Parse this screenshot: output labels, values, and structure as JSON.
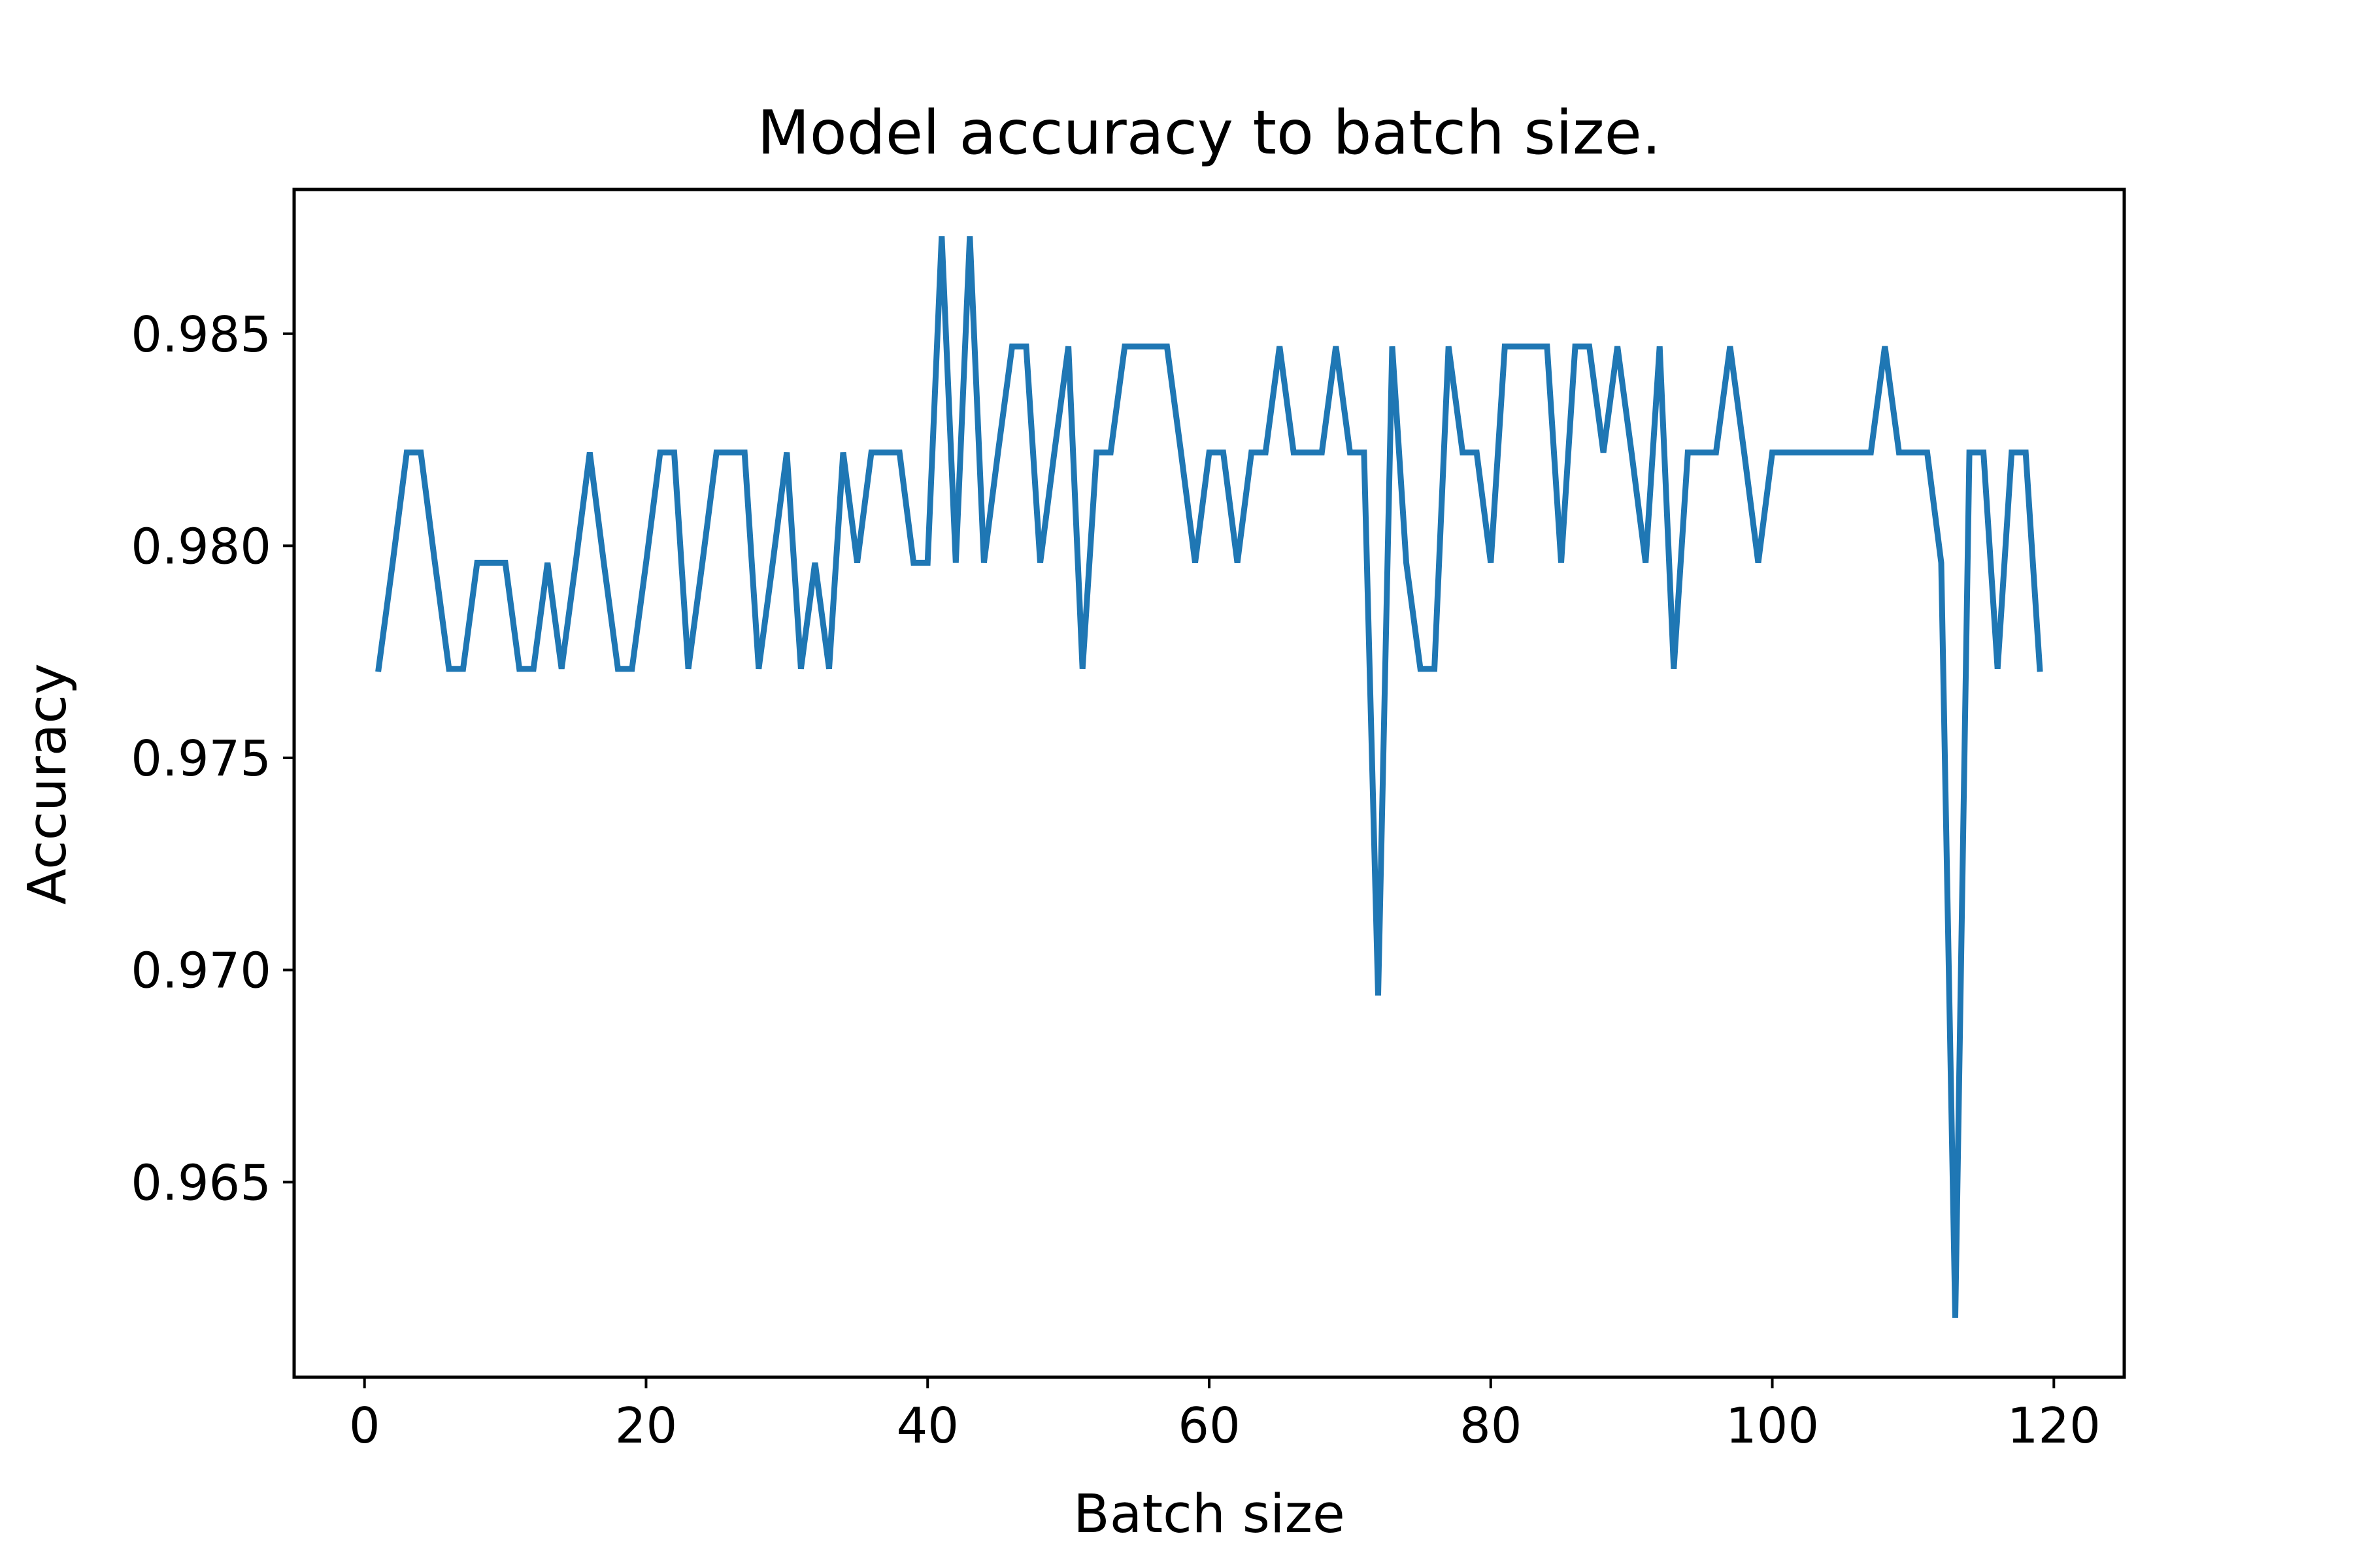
{
  "chart_data": {
    "type": "line",
    "title": "Model accuracy to batch size.",
    "xlabel": "Batch size",
    "ylabel": "Accuracy",
    "xlim": [
      -5,
      125
    ],
    "ylim": [
      0.9604,
      0.9884
    ],
    "xticks": [
      0,
      20,
      40,
      60,
      80,
      100,
      120
    ],
    "xtick_labels": [
      "0",
      "20",
      "40",
      "60",
      "80",
      "100",
      "120"
    ],
    "yticks": [
      0.965,
      0.97,
      0.975,
      0.98,
      0.985
    ],
    "ytick_labels": [
      "0.965",
      "0.970",
      "0.975",
      "0.980",
      "0.985"
    ],
    "grid": false,
    "legend": "none",
    "series": [
      {
        "color": "#1f77b4",
        "x": [
          1,
          2,
          3,
          4,
          5,
          6,
          7,
          8,
          9,
          10,
          11,
          12,
          13,
          14,
          15,
          16,
          17,
          18,
          19,
          20,
          21,
          22,
          23,
          24,
          25,
          26,
          27,
          28,
          29,
          30,
          31,
          32,
          33,
          34,
          35,
          36,
          37,
          38,
          39,
          40,
          41,
          42,
          43,
          44,
          45,
          46,
          47,
          48,
          49,
          50,
          51,
          52,
          53,
          54,
          55,
          56,
          57,
          58,
          59,
          60,
          61,
          62,
          63,
          64,
          65,
          66,
          67,
          68,
          69,
          70,
          71,
          72,
          73,
          74,
          75,
          76,
          77,
          78,
          79,
          80,
          81,
          82,
          83,
          84,
          85,
          86,
          87,
          88,
          89,
          90,
          91,
          92,
          93,
          94,
          95,
          96,
          97,
          98,
          99,
          100,
          101,
          102,
          103,
          104,
          105,
          106,
          107,
          108,
          109,
          110,
          111,
          112,
          113,
          114,
          115,
          116,
          117,
          118,
          119
        ],
        "y": [
          0.9771,
          0.9796,
          0.9822,
          0.9822,
          0.9796,
          0.9771,
          0.9771,
          0.9796,
          0.9796,
          0.9796,
          0.9771,
          0.9771,
          0.9796,
          0.9771,
          0.9796,
          0.9822,
          0.9796,
          0.9771,
          0.9771,
          0.9796,
          0.9822,
          0.9822,
          0.9771,
          0.9796,
          0.9822,
          0.9822,
          0.9822,
          0.9771,
          0.9796,
          0.9822,
          0.9771,
          0.9796,
          0.9771,
          0.9822,
          0.9796,
          0.9822,
          0.9822,
          0.9822,
          0.9796,
          0.9796,
          0.9873,
          0.9796,
          0.9873,
          0.9796,
          0.9822,
          0.9847,
          0.9847,
          0.9796,
          0.9822,
          0.9847,
          0.9771,
          0.9822,
          0.9822,
          0.9847,
          0.9847,
          0.9847,
          0.9847,
          0.9822,
          0.9796,
          0.9822,
          0.9822,
          0.9796,
          0.9822,
          0.9822,
          0.9847,
          0.9822,
          0.9822,
          0.9822,
          0.9847,
          0.9822,
          0.9822,
          0.9694,
          0.9847,
          0.9796,
          0.9771,
          0.9771,
          0.9847,
          0.9822,
          0.9822,
          0.9796,
          0.9847,
          0.9847,
          0.9847,
          0.9847,
          0.9796,
          0.9847,
          0.9847,
          0.9822,
          0.9847,
          0.9822,
          0.9796,
          0.9847,
          0.9771,
          0.9822,
          0.9822,
          0.9822,
          0.9847,
          0.9822,
          0.9796,
          0.9822,
          0.9822,
          0.9822,
          0.9822,
          0.9822,
          0.9822,
          0.9822,
          0.9822,
          0.9847,
          0.9822,
          0.9822,
          0.9822,
          0.9796,
          0.9618,
          0.9822,
          0.9822,
          0.9771,
          0.9822,
          0.9822,
          0.9771
        ]
      }
    ]
  }
}
